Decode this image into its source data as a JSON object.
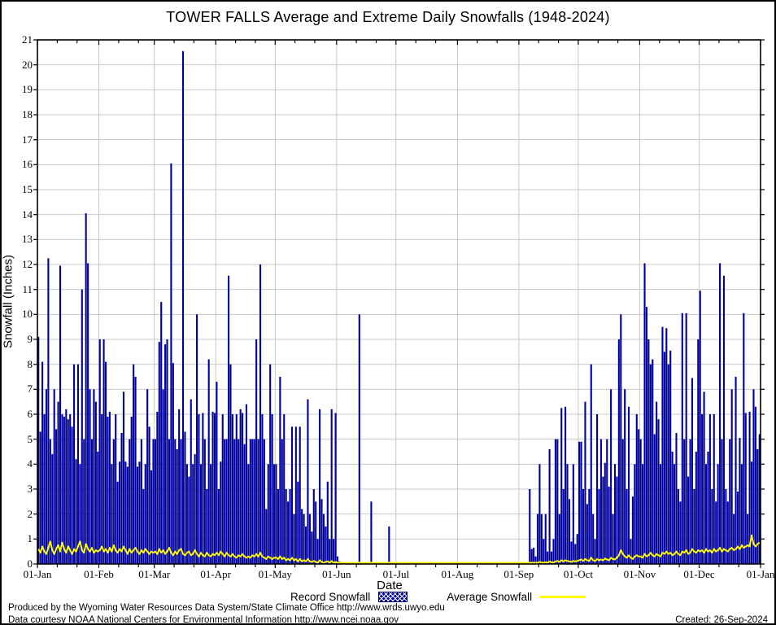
{
  "title": "TOWER FALLS Average and Extreme Daily Snowfalls (1948-2024)",
  "y_axis": {
    "label": "Snowfall (Inches)"
  },
  "x_axis": {
    "label": "Date"
  },
  "legend": [
    {
      "label": "Record Snowfall",
      "color": "#00009C",
      "style": "hatched-bar"
    },
    {
      "label": "Average Snowfall",
      "color": "#FFFF00",
      "style": "line"
    }
  ],
  "footer": {
    "line1": "Produced by the Wyoming Water Resources Data System/State Climate Office http://www.wrds.uwyo.edu",
    "line2": "Data courtesy NOAA National Centers for Environmental Information http://www.ncei.noaa.gov",
    "created": "Created: 26-Sep-2024"
  },
  "colors": {
    "bar": "#00009C",
    "average_line": "#FFFF00",
    "grid": "#c8c8c8",
    "frame": "#000000",
    "background": "#ffffff"
  },
  "chart_data": {
    "type": "bar",
    "title": "TOWER FALLS Average and Extreme Daily Snowfalls (1948-2024)",
    "xlabel": "Date",
    "ylabel": "Snowfall (Inches)",
    "ylim": [
      0,
      21
    ],
    "grid": true,
    "legend_position": "bottom",
    "y_ticks": [
      0,
      1,
      2,
      3,
      4,
      5,
      6,
      7,
      8,
      9,
      10,
      11,
      12,
      13,
      14,
      15,
      16,
      17,
      18,
      19,
      20,
      21
    ],
    "x_tick_labels": [
      "01-Jan",
      "01-Feb",
      "01-Mar",
      "01-Apr",
      "01-May",
      "01-Jun",
      "01-Jul",
      "01-Aug",
      "01-Sep",
      "01-Oct",
      "01-Nov",
      "01-Dec",
      "01-Jan"
    ],
    "month_day_offsets": [
      0,
      31,
      59,
      90,
      120,
      151,
      181,
      212,
      243,
      273,
      304,
      334,
      365
    ],
    "series": [
      {
        "name": "Record Snowfall",
        "type": "bar",
        "color": "#00009C",
        "values": [
          9.1,
          5.3,
          8.1,
          6.0,
          7.0,
          12.25,
          5.0,
          4.4,
          7.0,
          5.4,
          6.5,
          11.95,
          6.0,
          5.9,
          6.2,
          5.8,
          6.0,
          5.5,
          8.0,
          4.2,
          8.0,
          4.0,
          11.0,
          5.0,
          14.05,
          12.05,
          7.0,
          5.0,
          7.0,
          6.5,
          4.5,
          9.0,
          6.0,
          9.0,
          8.1,
          5.9,
          6.1,
          4.0,
          5.0,
          6.0,
          3.3,
          4.1,
          5.25,
          6.9,
          4.1,
          3.9,
          5.0,
          5.9,
          8.0,
          7.5,
          3.9,
          4.1,
          5.0,
          3.0,
          4.0,
          7.0,
          5.5,
          3.75,
          5.0,
          5.0,
          6.1,
          8.9,
          10.5,
          7.0,
          8.8,
          9.0,
          5.0,
          16.05,
          8.05,
          5.0,
          4.6,
          6.2,
          5.0,
          20.55,
          5.3,
          4.0,
          3.5,
          6.6,
          4.0,
          4.4,
          10.0,
          6.0,
          4.0,
          6.05,
          5.0,
          3.0,
          8.2,
          4.0,
          6.1,
          6.05,
          7.3,
          3.0,
          4.1,
          6.0,
          5.0,
          5.0,
          11.55,
          8.0,
          6.0,
          5.0,
          6.0,
          5.0,
          6.2,
          6.05,
          4.8,
          6.4,
          4.0,
          5.0,
          5.0,
          5.0,
          9.0,
          5.0,
          12.0,
          6.0,
          5.0,
          2.2,
          4.0,
          8.0,
          6.0,
          4.0,
          4.0,
          3.0,
          7.5,
          5.0,
          6.0,
          3.0,
          2.5,
          3.0,
          5.5,
          2.0,
          5.5,
          3.3,
          5.5,
          2.2,
          2.0,
          1.5,
          6.6,
          2.0,
          1.3,
          3.0,
          2.5,
          1.0,
          6.2,
          2.6,
          2.0,
          1.5,
          3.3,
          1.0,
          6.2,
          1.0,
          6.05,
          0.3,
          0.1,
          0,
          0,
          0,
          0,
          0,
          0,
          0,
          0,
          0,
          10.0,
          0,
          0,
          0,
          0,
          0,
          2.5,
          0,
          0,
          0,
          0,
          0,
          0,
          0,
          0,
          1.5,
          0,
          0,
          0,
          0,
          0,
          0,
          0,
          0,
          0,
          0,
          0,
          0,
          0,
          0,
          0,
          0,
          0,
          0,
          0,
          0,
          0,
          0,
          0,
          0,
          0,
          0,
          0,
          0,
          0,
          0,
          0,
          0,
          0,
          0,
          0,
          0,
          0,
          0,
          0,
          0,
          0,
          0,
          0,
          0,
          0,
          0,
          0,
          0,
          0,
          0,
          0,
          0,
          0,
          0,
          0,
          0,
          0,
          0,
          0,
          0,
          0,
          0,
          0,
          0,
          0,
          0,
          0,
          0,
          0,
          0.05,
          3.0,
          0.6,
          0.65,
          0.3,
          2.0,
          4.0,
          2.0,
          1.0,
          2.0,
          0.5,
          4.6,
          0.5,
          1.0,
          5.0,
          5.0,
          2.0,
          6.25,
          3.0,
          6.3,
          4.0,
          2.6,
          0.9,
          4.0,
          0.8,
          1.2,
          4.9,
          4.9,
          3.0,
          6.5,
          2.4,
          3.0,
          8.0,
          2.0,
          1.0,
          6.0,
          3.0,
          5.0,
          3.5,
          4.05,
          5.0,
          3.1,
          7.0,
          2.0,
          4.0,
          3.5,
          9.0,
          10.0,
          5.0,
          7.0,
          3.0,
          6.3,
          1.0,
          2.7,
          4.0,
          6.0,
          5.4,
          5.0,
          4.0,
          12.05,
          10.3,
          9.0,
          8.0,
          8.2,
          5.2,
          6.5,
          5.8,
          4.0,
          9.5,
          8.5,
          9.45,
          8.0,
          8.55,
          4.5,
          4.0,
          5.25,
          3.0,
          2.5,
          10.05,
          5.0,
          10.05,
          3.5,
          5.0,
          7.45,
          3.0,
          4.5,
          9.0,
          10.95,
          6.0,
          6.9,
          4.0,
          4.5,
          6.0,
          3.0,
          6.0,
          2.5,
          4.0,
          12.05,
          5.0,
          11.55,
          3.0,
          2.5,
          5.0,
          7.0,
          2.0,
          7.5,
          2.9,
          5.05,
          4.0,
          10.05,
          6.05,
          2.0,
          6.1,
          4.1,
          7.0,
          6.3,
          4.6,
          5.2
        ]
      },
      {
        "name": "Average Snowfall",
        "type": "line",
        "color": "#FFFF00",
        "values": [
          0.6,
          0.45,
          0.7,
          0.5,
          0.4,
          0.65,
          0.9,
          0.55,
          0.4,
          0.6,
          0.75,
          0.5,
          0.85,
          0.6,
          0.45,
          0.7,
          0.55,
          0.4,
          0.6,
          0.5,
          0.7,
          0.9,
          0.55,
          0.45,
          0.8,
          0.6,
          0.5,
          0.65,
          0.45,
          0.55,
          0.5,
          0.55,
          0.7,
          0.5,
          0.6,
          0.45,
          0.65,
          0.5,
          0.75,
          0.55,
          0.45,
          0.6,
          0.5,
          0.7,
          0.55,
          0.4,
          0.6,
          0.45,
          0.55,
          0.65,
          0.5,
          0.4,
          0.55,
          0.45,
          0.6,
          0.5,
          0.4,
          0.5,
          0.45,
          0.5,
          0.4,
          0.6,
          0.45,
          0.55,
          0.4,
          0.5,
          0.65,
          0.45,
          0.35,
          0.5,
          0.4,
          0.55,
          0.6,
          0.4,
          0.35,
          0.45,
          0.5,
          0.35,
          0.4,
          0.55,
          0.4,
          0.3,
          0.45,
          0.35,
          0.3,
          0.45,
          0.35,
          0.3,
          0.4,
          0.35,
          0.45,
          0.35,
          0.5,
          0.4,
          0.3,
          0.45,
          0.35,
          0.3,
          0.4,
          0.3,
          0.25,
          0.35,
          0.3,
          0.4,
          0.3,
          0.25,
          0.3,
          0.25,
          0.35,
          0.3,
          0.4,
          0.3,
          0.45,
          0.3,
          0.25,
          0.2,
          0.3,
          0.25,
          0.2,
          0.25,
          0.25,
          0.2,
          0.3,
          0.2,
          0.25,
          0.15,
          0.2,
          0.15,
          0.25,
          0.15,
          0.2,
          0.1,
          0.2,
          0.1,
          0.15,
          0.1,
          0.2,
          0.1,
          0.08,
          0.12,
          0.08,
          0.05,
          0.15,
          0.08,
          0.05,
          0.08,
          0.1,
          0.05,
          0.12,
          0.05,
          0.08,
          0.05,
          0.03,
          0.02,
          0.02,
          0.01,
          0.01,
          0.01,
          0,
          0,
          0,
          0.03,
          0.05,
          0.02,
          0,
          0,
          0,
          0.01,
          0.02,
          0,
          0,
          0,
          0,
          0,
          0,
          0,
          0.01,
          0.01,
          0,
          0,
          0,
          0,
          0,
          0,
          0,
          0,
          0,
          0,
          0,
          0,
          0,
          0,
          0,
          0,
          0,
          0,
          0,
          0,
          0,
          0,
          0,
          0,
          0,
          0,
          0,
          0,
          0,
          0,
          0,
          0,
          0,
          0,
          0,
          0,
          0,
          0,
          0,
          0,
          0,
          0,
          0,
          0,
          0,
          0,
          0,
          0,
          0,
          0,
          0,
          0,
          0,
          0,
          0,
          0,
          0,
          0,
          0,
          0,
          0,
          0,
          0,
          0.01,
          0.01,
          0.01,
          0.01,
          0.02,
          0.02,
          0.03,
          0.05,
          0.04,
          0.04,
          0.03,
          0.05,
          0.08,
          0.06,
          0.05,
          0.07,
          0.05,
          0.1,
          0.07,
          0.06,
          0.1,
          0.12,
          0.08,
          0.15,
          0.1,
          0.15,
          0.12,
          0.1,
          0.08,
          0.12,
          0.1,
          0.12,
          0.15,
          0.18,
          0.12,
          0.2,
          0.15,
          0.12,
          0.25,
          0.15,
          0.12,
          0.2,
          0.15,
          0.18,
          0.15,
          0.22,
          0.18,
          0.15,
          0.25,
          0.2,
          0.18,
          0.25,
          0.35,
          0.55,
          0.4,
          0.3,
          0.25,
          0.35,
          0.25,
          0.2,
          0.3,
          0.35,
          0.3,
          0.3,
          0.25,
          0.4,
          0.3,
          0.35,
          0.45,
          0.35,
          0.3,
          0.4,
          0.35,
          0.3,
          0.45,
          0.4,
          0.5,
          0.4,
          0.45,
          0.35,
          0.4,
          0.5,
          0.4,
          0.35,
          0.5,
          0.45,
          0.55,
          0.4,
          0.45,
          0.6,
          0.5,
          0.45,
          0.55,
          0.5,
          0.55,
          0.45,
          0.6,
          0.5,
          0.55,
          0.45,
          0.6,
          0.5,
          0.55,
          0.65,
          0.5,
          0.6,
          0.55,
          0.5,
          0.6,
          0.65,
          0.55,
          0.6,
          0.7,
          0.6,
          0.75,
          0.65,
          0.7,
          0.75,
          0.7,
          1.15,
          0.8,
          0.7,
          0.8,
          0.85
        ]
      }
    ]
  }
}
